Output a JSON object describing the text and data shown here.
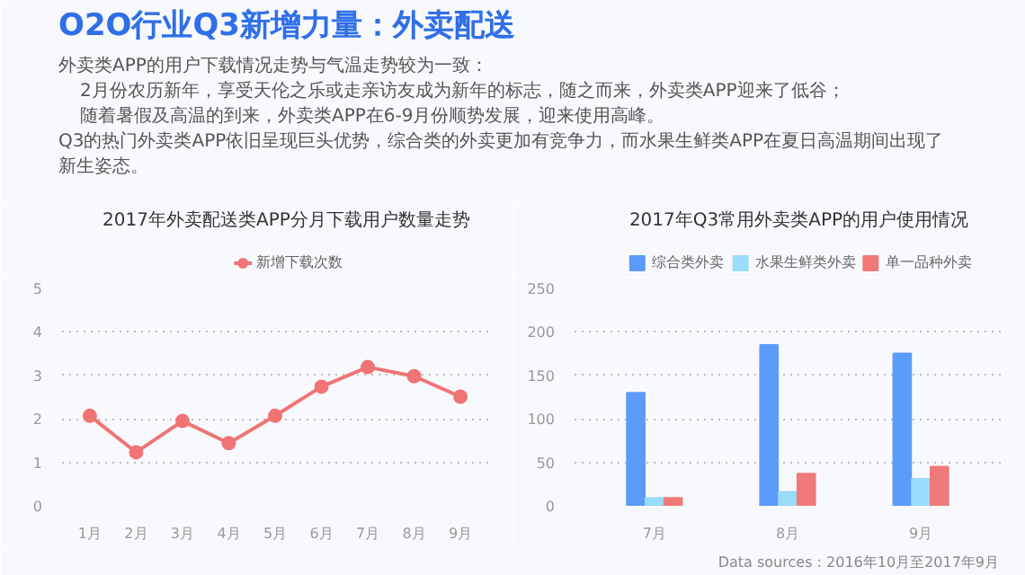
{
  "chart_data": [
    {
      "type": "other",
      "title": "O2O行业Q3新增力量：外卖配送",
      "annotations": [
        "外卖类APP的用户下载情况走势与气温走势较为一致：",
        "2月份农历新年，享受天伦之乐或走亲访友成为新年的标志，随之而来，外卖类APP迎来了低谷；",
        "随着暑假及高温的到来，外卖类APP在6-9月份顺势发展，迎来使用高峰。",
        "Q3的热门外卖类APP依旧呈现巨头优势，综合类的外卖更加有竞争力，而水果生鲜类APP在夏日高温期间出现了新生姿态。",
        "Data sources : 2016年10月至2017年9月"
      ]
    },
    {
      "type": "line",
      "title": "2017年外卖配送类APP分月下载用户数量走势",
      "categories": [
        "1月",
        "2月",
        "3月",
        "4月",
        "5月",
        "6月",
        "7月",
        "8月",
        "9月"
      ],
      "series": [
        {
          "name": "新增下载次数",
          "color": "#f07474",
          "values": [
            2.07,
            1.23,
            1.95,
            1.44,
            2.07,
            2.74,
            3.19,
            2.98,
            2.51
          ]
        }
      ],
      "ylim": [
        0,
        5
      ],
      "yticks": [
        0,
        1,
        2,
        3,
        4,
        5
      ],
      "grid": "y",
      "legend": "top",
      "marker": "circle",
      "line_style": "solid"
    },
    {
      "type": "bar",
      "title": "2017年Q3常用外卖类APP的用户使用情况",
      "categories": [
        "7月",
        "8月",
        "9月"
      ],
      "series": [
        {
          "name": "综合类外卖",
          "color": "#5b9cfa",
          "values": [
            130,
            185,
            175
          ]
        },
        {
          "name": "水果生鲜类外卖",
          "color": "#9adcfc",
          "values": [
            9,
            16,
            31
          ]
        },
        {
          "name": "单一品种外卖",
          "color": "#f07a7a",
          "values": [
            9,
            37,
            45
          ]
        }
      ],
      "ylim": [
        0,
        250
      ],
      "yticks": [
        0,
        50,
        100,
        150,
        200,
        250
      ],
      "grid": "y",
      "legend": "top"
    }
  ]
}
